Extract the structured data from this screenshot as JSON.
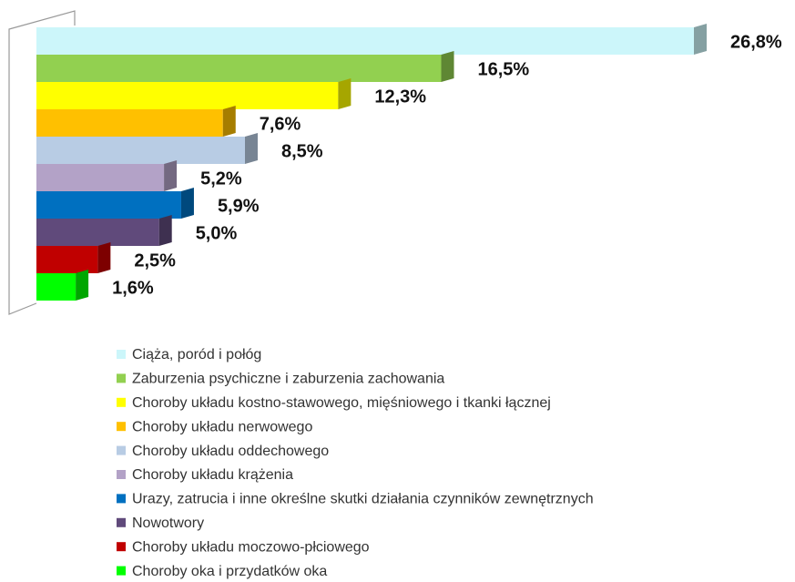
{
  "chart_data": {
    "type": "bar",
    "orientation": "horizontal",
    "categories": [
      "Ciąża, poród i połóg",
      "Zaburzenia psychiczne i zaburzenia zachowania",
      "Choroby układu kostno-stawowego, mięśniowego i tkanki łącznej",
      "Choroby układu nerwowego",
      "Choroby układu oddechowego",
      "Choroby układu krążenia",
      "Urazy, zatrucia i inne określne skutki działania czynników zewnętrznych",
      "Nowotwory",
      "Choroby układu moczowo-płciowego",
      "Choroby oka i przydatków oka"
    ],
    "values": [
      26.8,
      16.5,
      12.3,
      7.6,
      8.5,
      5.2,
      5.9,
      5.0,
      2.5,
      1.6
    ],
    "value_labels": [
      "26,8%",
      "16,5%",
      "12,3%",
      "7,6%",
      "8,5%",
      "5,2%",
      "5,9%",
      "5,0%",
      "2,5%",
      "1,6%"
    ],
    "colors": [
      "#ccf6fa",
      "#92d050",
      "#ffff00",
      "#ffc000",
      "#b8cce4",
      "#b3a2c7",
      "#0070c0",
      "#604a7b",
      "#c00000",
      "#00ff00"
    ],
    "legend": "bottom"
  }
}
